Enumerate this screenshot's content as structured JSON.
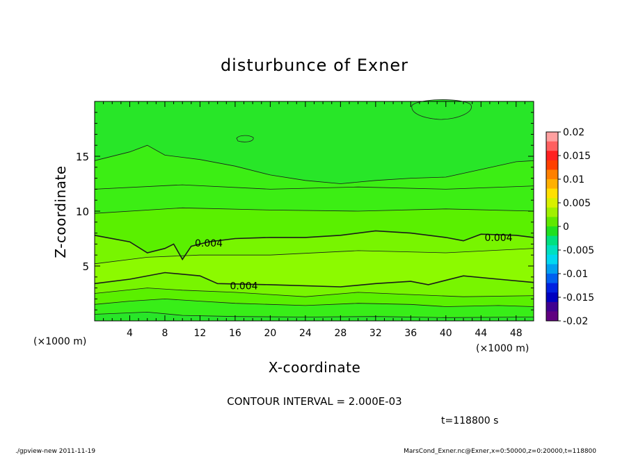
{
  "chart_data": {
    "type": "contour",
    "title": "disturbunce of Exner",
    "xlabel": "X-coordinate",
    "ylabel": "Z-coordinate",
    "x_unit_left": "(×1000 m)",
    "x_unit_right": "(×1000 m)",
    "xlim": [
      0,
      50
    ],
    "ylim": [
      0,
      20
    ],
    "xticks": [
      4,
      8,
      12,
      16,
      20,
      24,
      28,
      32,
      36,
      40,
      44,
      48
    ],
    "yticks": [
      5,
      10,
      15
    ],
    "contour_interval_text": "CONTOUR INTERVAL = 2.000E-03",
    "contour_labels": [
      {
        "text": "0.004",
        "x": 13,
        "z": 7.1
      },
      {
        "text": "0.004",
        "x": 17,
        "z": 3.2
      },
      {
        "text": "0.004",
        "x": 46,
        "z": 7.6
      }
    ],
    "bands": [
      {
        "level": 0.001,
        "color": "#28e628",
        "profile": [
          [
            0,
            0.6
          ],
          [
            6,
            0.8
          ],
          [
            10,
            0.5
          ],
          [
            16,
            0.4
          ],
          [
            24,
            0.35
          ],
          [
            32,
            0.4
          ],
          [
            40,
            0.3
          ],
          [
            50,
            0.35
          ]
        ]
      },
      {
        "level": 0.002,
        "color": "#38ee18",
        "profile": [
          [
            0,
            1.5
          ],
          [
            4,
            1.8
          ],
          [
            8,
            2.0
          ],
          [
            12,
            1.8
          ],
          [
            16,
            1.6
          ],
          [
            24,
            1.4
          ],
          [
            30,
            1.6
          ],
          [
            36,
            1.5
          ],
          [
            40,
            1.3
          ],
          [
            46,
            1.4
          ],
          [
            50,
            1.3
          ]
        ]
      },
      {
        "level": 0.003,
        "color": "#5af000",
        "profile": [
          [
            0,
            2.5
          ],
          [
            6,
            3.0
          ],
          [
            10,
            2.8
          ],
          [
            16,
            2.6
          ],
          [
            24,
            2.2
          ],
          [
            30,
            2.6
          ],
          [
            36,
            2.4
          ],
          [
            42,
            2.2
          ],
          [
            50,
            2.3
          ]
        ]
      },
      {
        "level": 0.004,
        "color": "#78f500",
        "profile": [
          [
            0,
            3.4
          ],
          [
            4,
            3.8
          ],
          [
            8,
            4.4
          ],
          [
            12,
            4.1
          ],
          [
            14,
            3.4
          ],
          [
            20,
            3.3
          ],
          [
            28,
            3.1
          ],
          [
            32,
            3.4
          ],
          [
            36,
            3.6
          ],
          [
            38,
            3.3
          ],
          [
            42,
            4.1
          ],
          [
            46,
            3.8
          ],
          [
            50,
            3.5
          ]
        ]
      },
      {
        "level": 0.005,
        "color": "#8cfa00",
        "profile": [
          [
            0,
            5.2
          ],
          [
            6,
            5.8
          ],
          [
            12,
            6.0
          ],
          [
            20,
            6.0
          ],
          [
            30,
            6.4
          ],
          [
            40,
            6.2
          ],
          [
            50,
            6.6
          ]
        ]
      },
      {
        "level": 0.004,
        "color": "#78f500",
        "profile": [
          [
            0,
            7.8
          ],
          [
            4,
            7.2
          ],
          [
            6,
            6.2
          ],
          [
            8,
            6.6
          ],
          [
            9,
            7.0
          ],
          [
            10,
            5.6
          ],
          [
            11,
            6.8
          ],
          [
            13,
            7.2
          ],
          [
            16,
            7.5
          ],
          [
            20,
            7.6
          ],
          [
            24,
            7.6
          ],
          [
            28,
            7.8
          ],
          [
            32,
            8.2
          ],
          [
            36,
            8.0
          ],
          [
            40,
            7.6
          ],
          [
            42,
            7.3
          ],
          [
            44,
            7.9
          ],
          [
            48,
            7.8
          ],
          [
            50,
            7.6
          ]
        ]
      },
      {
        "level": 0.003,
        "color": "#5af000",
        "profile": [
          [
            0,
            9.8
          ],
          [
            10,
            10.3
          ],
          [
            20,
            10.1
          ],
          [
            30,
            10.0
          ],
          [
            40,
            10.2
          ],
          [
            50,
            10.0
          ]
        ]
      },
      {
        "level": 0.002,
        "color": "#3cee14",
        "profile": [
          [
            0,
            12.0
          ],
          [
            10,
            12.4
          ],
          [
            20,
            12.0
          ],
          [
            30,
            12.2
          ],
          [
            40,
            12.0
          ],
          [
            50,
            12.3
          ]
        ]
      },
      {
        "level": 0.002,
        "color": "#3cee14",
        "profile": [
          [
            0,
            14.6
          ],
          [
            4,
            15.4
          ],
          [
            6,
            16.0
          ],
          [
            8,
            15.1
          ],
          [
            12,
            14.7
          ],
          [
            16,
            14.1
          ],
          [
            20,
            13.3
          ],
          [
            24,
            12.8
          ],
          [
            28,
            12.5
          ],
          [
            32,
            12.8
          ],
          [
            36,
            13.0
          ],
          [
            40,
            13.1
          ],
          [
            44,
            13.8
          ],
          [
            48,
            14.5
          ],
          [
            50,
            14.6
          ]
        ]
      },
      {
        "level": 0.001,
        "color": "#28e628",
        "profile": [
          [
            0,
            20
          ],
          [
            50,
            20
          ]
        ]
      }
    ],
    "colorbar": {
      "labels": [
        "0.02",
        "0.015",
        "0.01",
        "0.005",
        "0",
        "-0.005",
        "-0.01",
        "-0.015",
        "-0.02"
      ],
      "colors": [
        "#ffa0a0",
        "#ff6060",
        "#ff2020",
        "#ff4000",
        "#ff8000",
        "#ffb000",
        "#ffe000",
        "#d8f000",
        "#a0f000",
        "#60e800",
        "#20e020",
        "#00e080",
        "#00e0c0",
        "#00d8f0",
        "#00a0f0",
        "#0060f0",
        "#0020e0",
        "#0000c0",
        "#400090",
        "#600080"
      ]
    },
    "time_label": "t=118800 s",
    "footer_left": "./gpview-new   2011-11-19",
    "footer_right": "MarsCond_Exner.nc@Exner,x=0:50000,z=0:20000,t=118800"
  }
}
